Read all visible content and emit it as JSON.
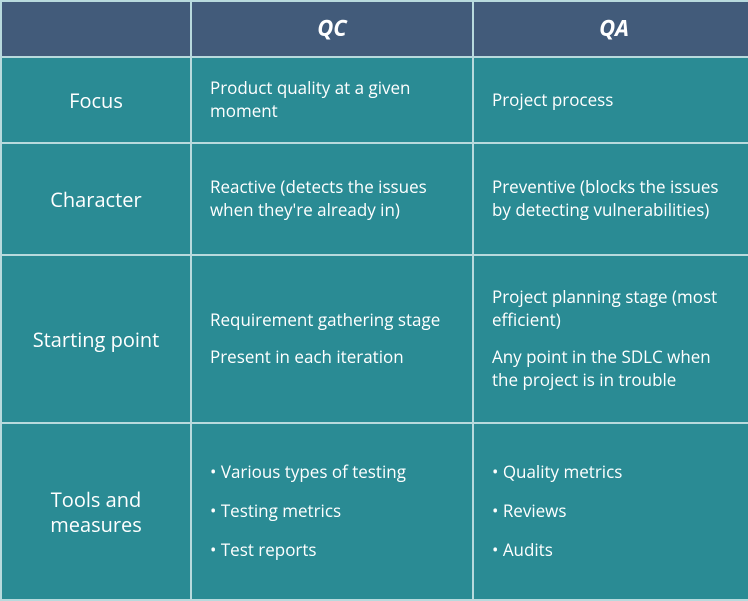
{
  "table": {
    "type": "table",
    "grid_cols": "188px 280px 280px",
    "grid_rows": "54px 84px 110px 166px 1fr",
    "background_color": "#2a8b94",
    "border_color": "#b8dadd",
    "header_bg": "#425b7a",
    "text_color": "#ffffff",
    "header_fontsize": 22,
    "rowlabel_fontsize": 20,
    "body_fontsize": 17,
    "columns": [
      "",
      "QC",
      "QA"
    ],
    "rows": [
      {
        "label": "Focus",
        "qc": [
          "Product quality at a given moment"
        ],
        "qa": [
          "Project process"
        ]
      },
      {
        "label": "Character",
        "qc": [
          "Reactive (detects the issues when they're already in)"
        ],
        "qa": [
          "Preventive (blocks the issues by detecting vulnerabilities)"
        ]
      },
      {
        "label": "Starting point",
        "qc": [
          "Requirement gathering stage",
          "Present in each iteration"
        ],
        "qa": [
          "Project planning stage (most efficient)",
          "Any point in the SDLC when the project is in trouble"
        ]
      },
      {
        "label": "Tools and measures",
        "qc_bullets": [
          "Various types of testing",
          "Testing metrics",
          "Test reports"
        ],
        "qa_bullets": [
          "Quality metrics",
          "Reviews",
          "Audits"
        ]
      }
    ]
  }
}
